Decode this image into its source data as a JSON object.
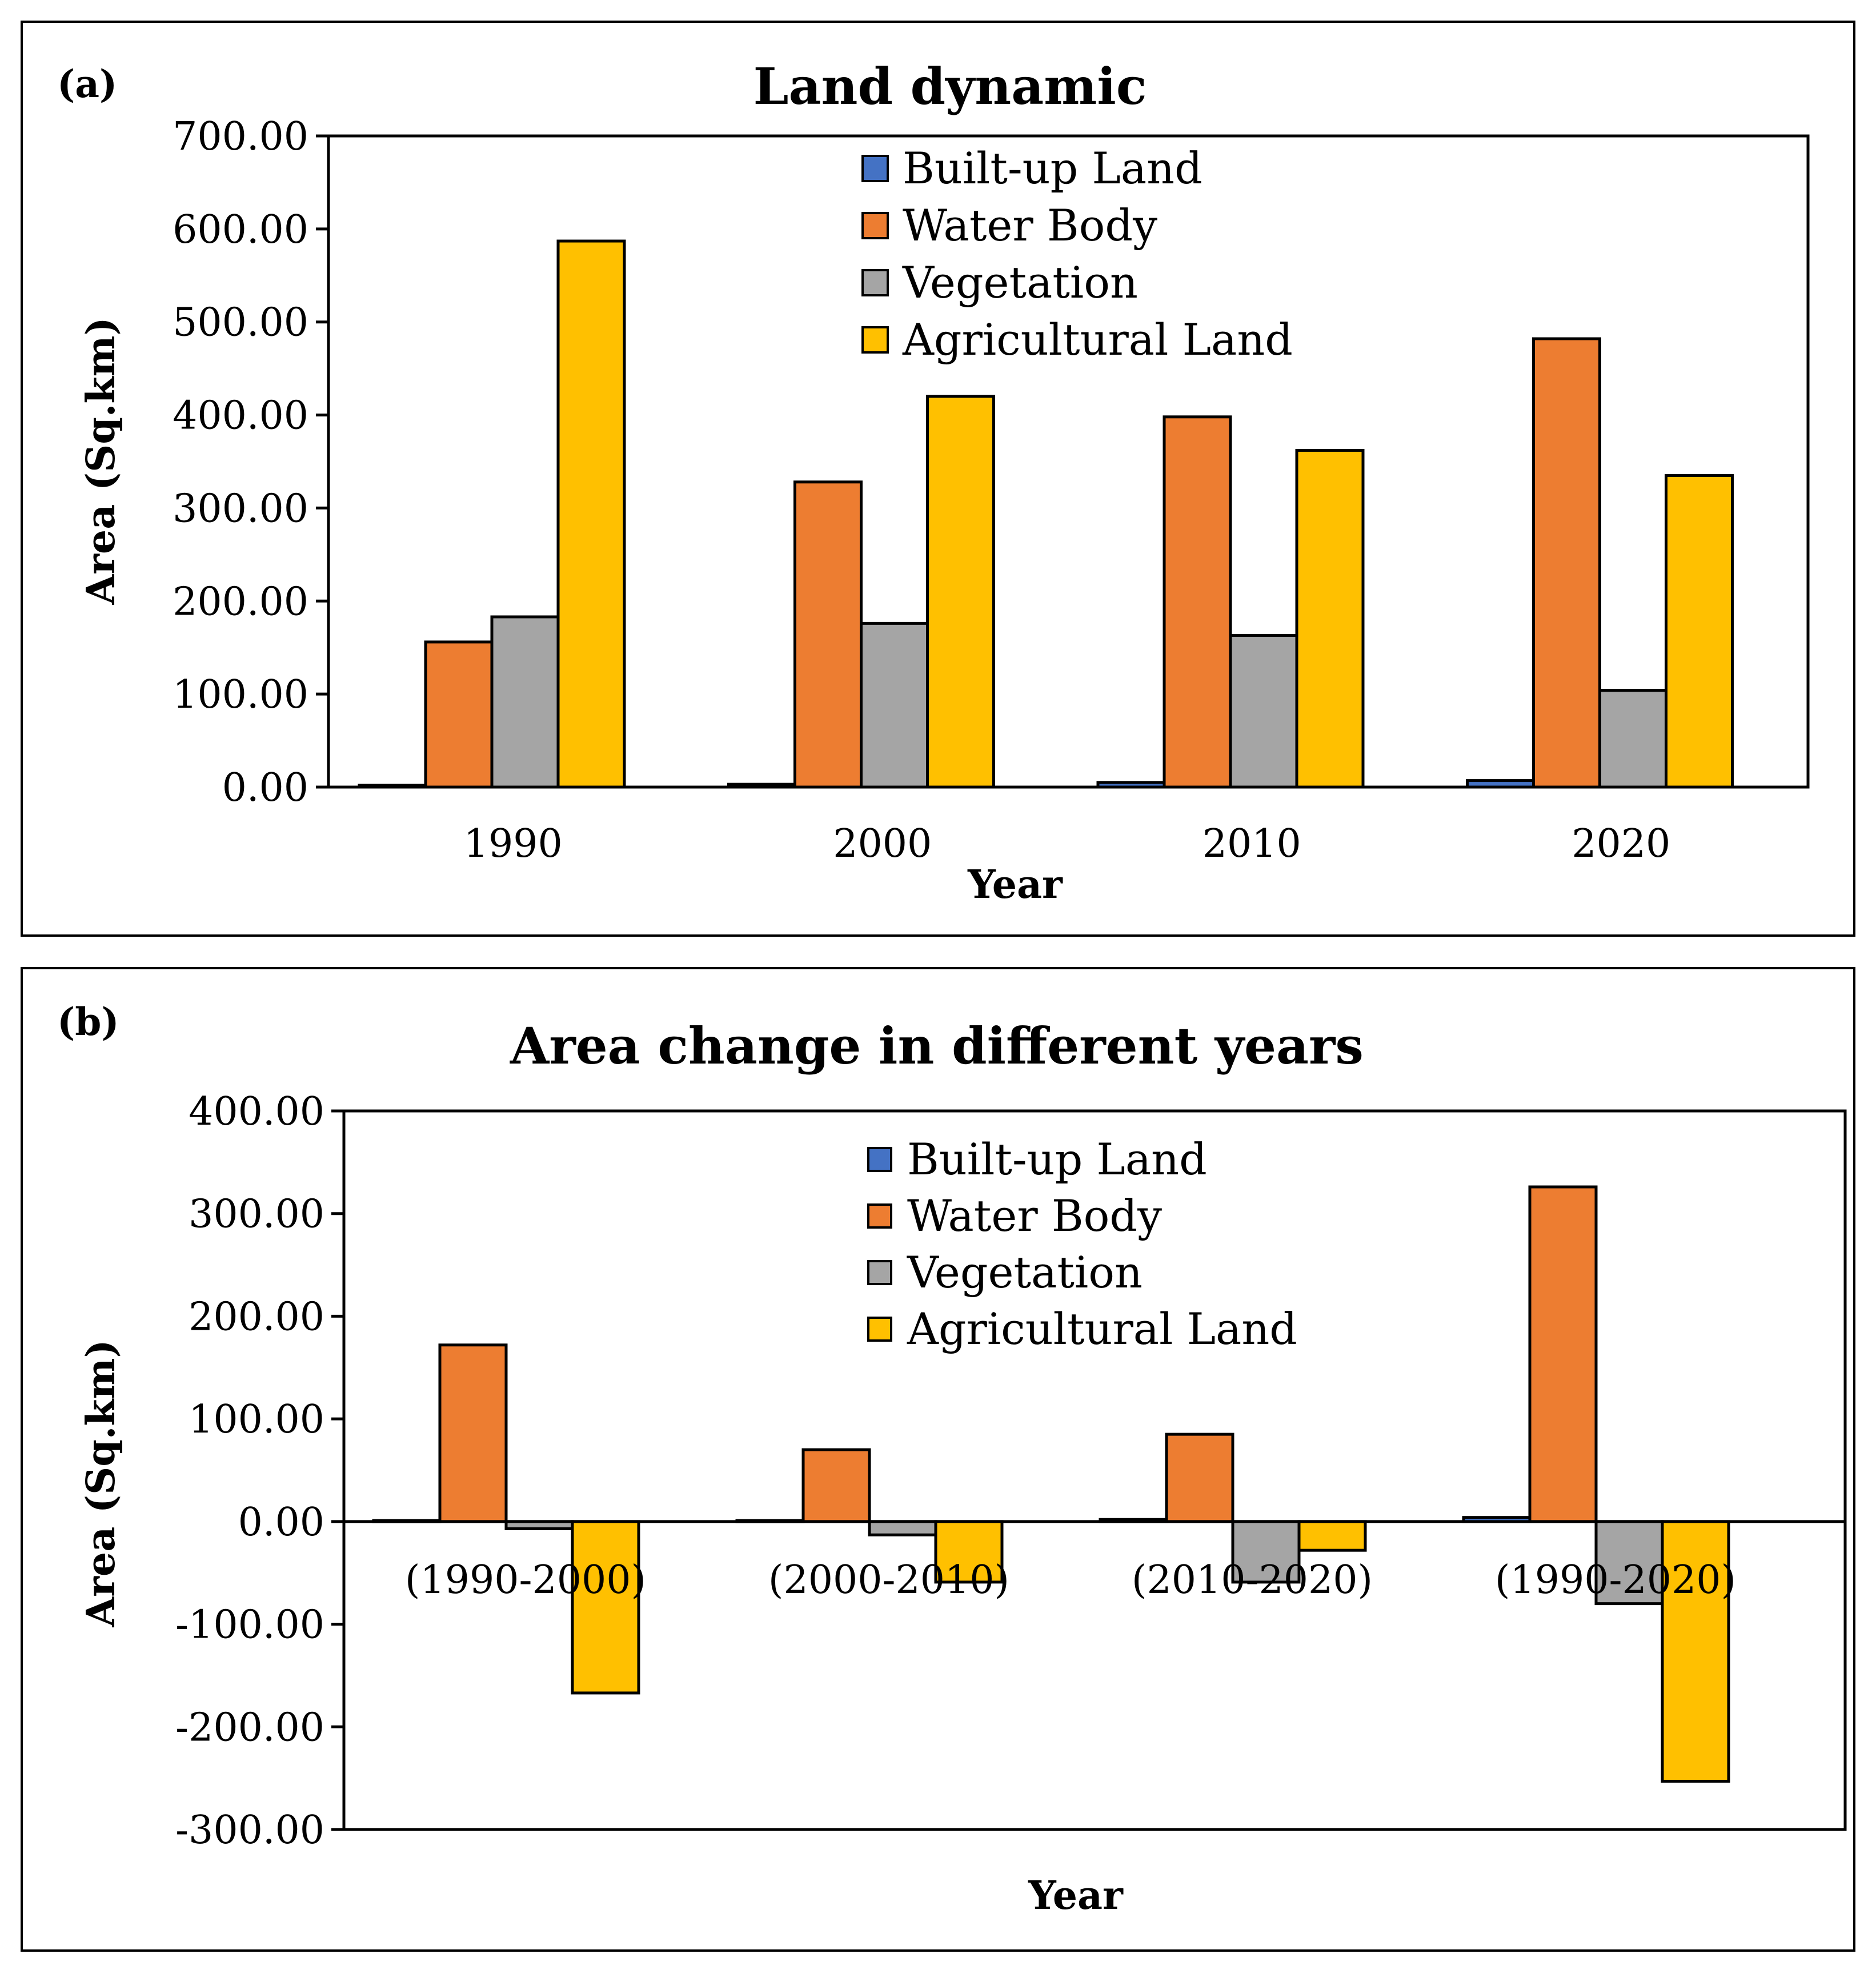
{
  "colors": {
    "built_up": "#4472C4",
    "water": "#ED7D31",
    "vegetation": "#A5A5A5",
    "agricultural": "#FFC000"
  },
  "chart_data": [
    {
      "panel_tag": "(a)",
      "type": "bar",
      "title": "Land dynamic",
      "xlabel": "Year",
      "ylabel": "Area (Sq.km)",
      "ylim": [
        0,
        700
      ],
      "yticks": [
        0,
        100,
        200,
        300,
        400,
        500,
        600,
        700
      ],
      "ytick_labels": [
        "0.00",
        "100.00",
        "200.00",
        "300.00",
        "400.00",
        "500.00",
        "600.00",
        "700.00"
      ],
      "categories": [
        "1990",
        "2000",
        "2010",
        "2020"
      ],
      "legend": "top-center",
      "series": [
        {
          "name": "Built-up Land",
          "color_key": "built_up",
          "values": [
            2,
            3,
            5,
            7
          ]
        },
        {
          "name": "Water Body",
          "color_key": "water",
          "values": [
            156,
            328,
            398,
            482
          ]
        },
        {
          "name": "Vegetation",
          "color_key": "vegetation",
          "values": [
            183,
            176,
            163,
            104
          ]
        },
        {
          "name": "Agricultural Land",
          "color_key": "agricultural",
          "values": [
            587,
            420,
            362,
            335
          ]
        }
      ]
    },
    {
      "panel_tag": "(b)",
      "type": "bar",
      "title": "Area change in different years",
      "xlabel": "Year",
      "ylabel": "Area (Sq.km)",
      "ylim": [
        -300,
        400
      ],
      "yticks": [
        -300,
        -200,
        -100,
        0,
        100,
        200,
        300,
        400
      ],
      "ytick_labels": [
        "-300.00",
        "-200.00",
        "-100.00",
        "0.00",
        "100.00",
        "200.00",
        "300.00",
        "400.00"
      ],
      "categories": [
        "(1990-2000)",
        "(2000-2010)",
        "(2010-2020)",
        "(1990-2020)"
      ],
      "legend": "top-center",
      "series": [
        {
          "name": "Built-up Land",
          "color_key": "built_up",
          "values": [
            1,
            1,
            2,
            4
          ]
        },
        {
          "name": "Water Body",
          "color_key": "water",
          "values": [
            172,
            70,
            85,
            326
          ]
        },
        {
          "name": "Vegetation",
          "color_key": "vegetation",
          "values": [
            -7,
            -13,
            -59,
            -80
          ]
        },
        {
          "name": "Agricultural Land",
          "color_key": "agricultural",
          "values": [
            -167,
            -59,
            -28,
            -253
          ]
        }
      ]
    }
  ]
}
